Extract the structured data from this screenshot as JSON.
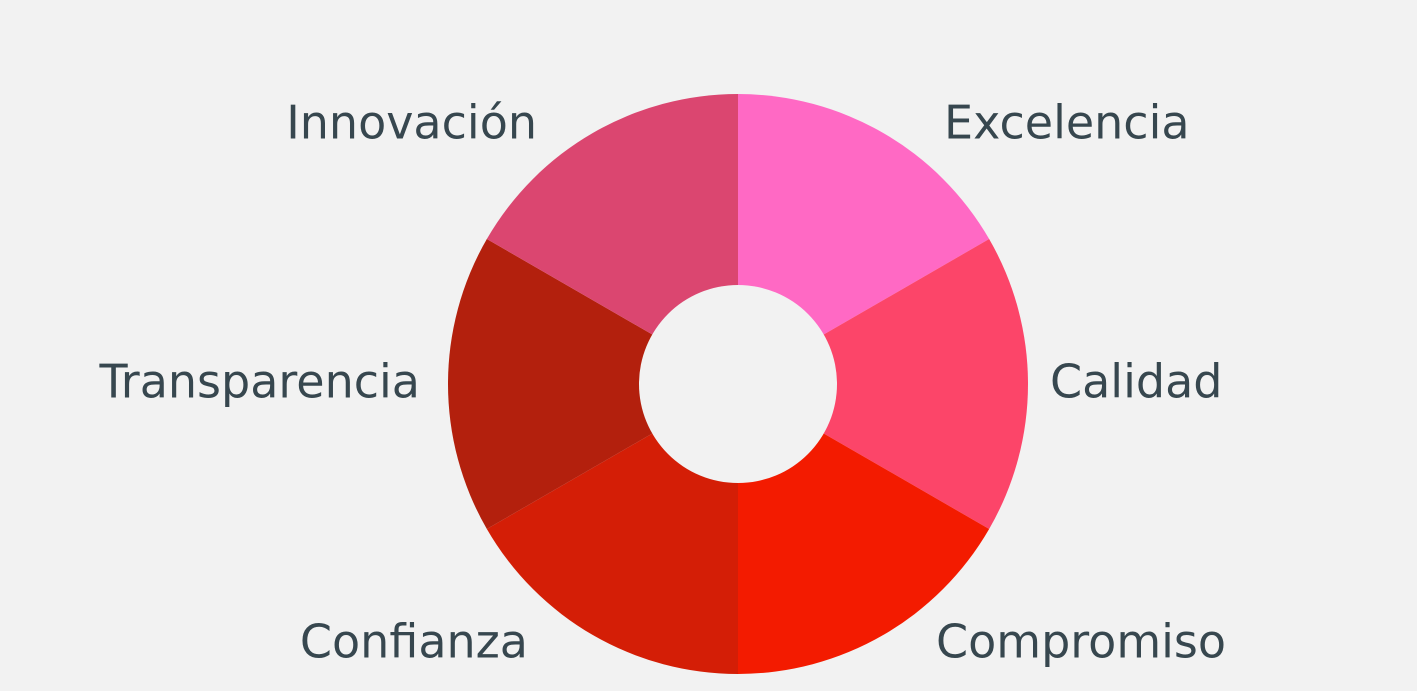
{
  "diagram": {
    "type": "donut-wheel",
    "background": "#f2f2f2",
    "hole_color": "#f2f2f2",
    "label_color": "#37474f",
    "segments": [
      {
        "label": "Excelencia",
        "color": "#ff69c4"
      },
      {
        "label": "Calidad",
        "color": "#fc4569"
      },
      {
        "label": "Compromiso",
        "color": "#f31b00"
      },
      {
        "label": "Confianza",
        "color": "#d41e06"
      },
      {
        "label": "Transparencia",
        "color": "#b3200d"
      },
      {
        "label": "Innovación",
        "color": "#db4670"
      }
    ]
  }
}
